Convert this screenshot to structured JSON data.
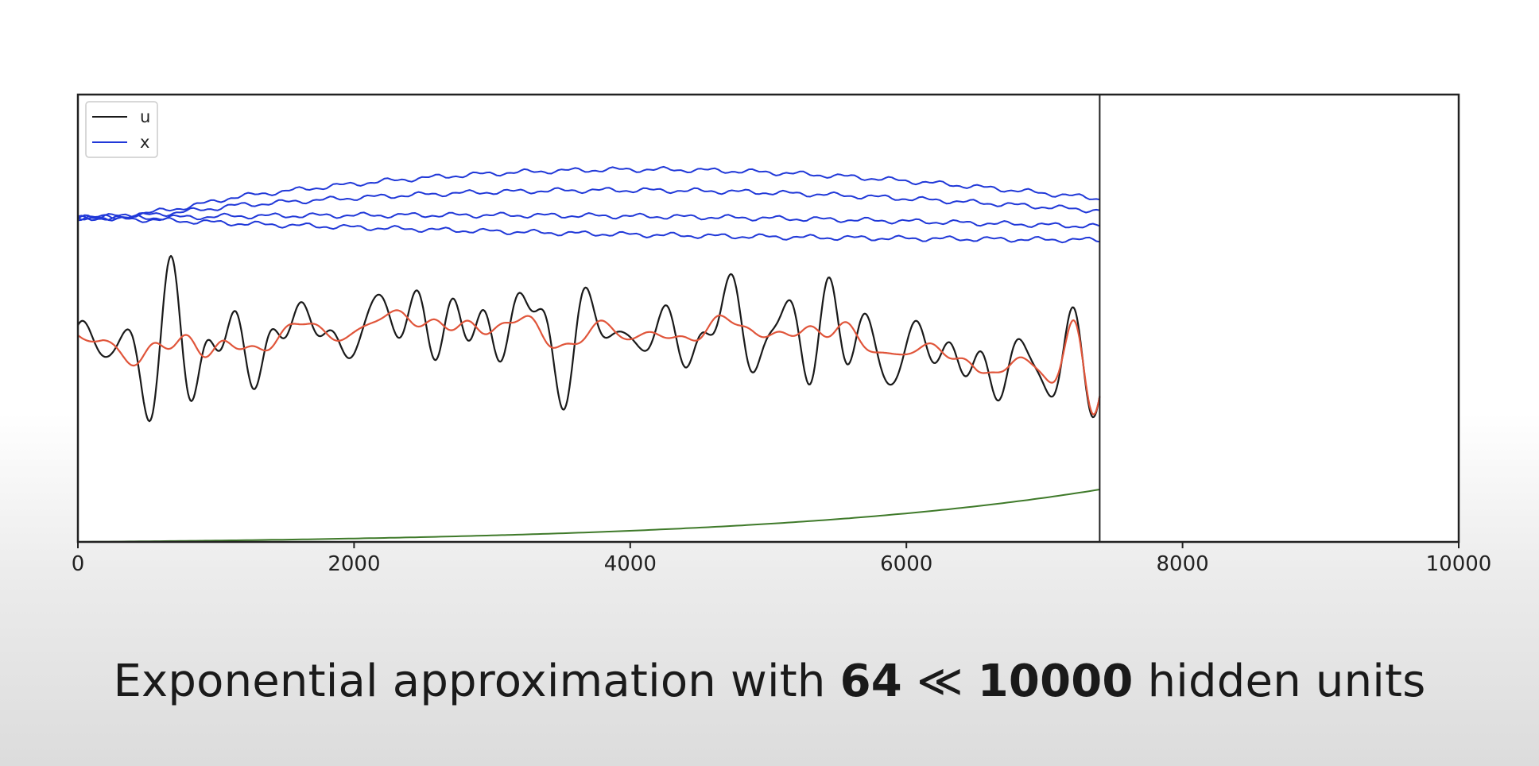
{
  "chart_data": {
    "type": "line",
    "xlim": [
      0,
      10000
    ],
    "x_ticks": [
      "0",
      "2000",
      "4000",
      "6000",
      "8000",
      "10000"
    ],
    "cursor_x": 7400,
    "grid": false,
    "legend": {
      "placement": "top-left",
      "entries": [
        {
          "label": "u",
          "color": "#1a1a1a"
        },
        {
          "label": "x",
          "color": "#2038d8"
        }
      ]
    },
    "series": [
      {
        "name": "u",
        "color": "#1a1a1a"
      },
      {
        "name": "x",
        "color": "#2038d8",
        "lines": 4
      },
      {
        "color": "#e0553a"
      },
      {
        "color": "#3f7a2a"
      }
    ]
  },
  "caption": {
    "prefix": "Exponential approximation with ",
    "bold1": "64",
    "middle": " ≪ ",
    "bold2": "10000",
    "suffix": " hidden units"
  }
}
